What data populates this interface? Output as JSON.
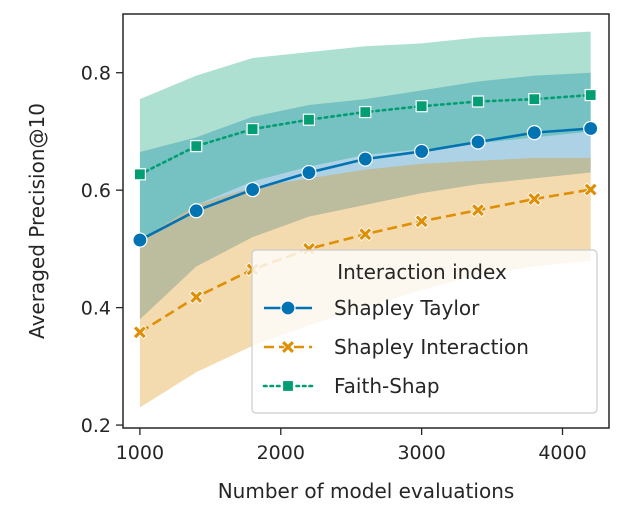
{
  "chart_data": {
    "type": "line",
    "title": "",
    "xlabel": "Number of model evaluations",
    "ylabel": "Averaged Precision@10",
    "xlim": [
      880,
      4330
    ],
    "ylim": [
      0.195,
      0.9
    ],
    "xticks": [
      1000,
      2000,
      3000,
      4000
    ],
    "xtick_labels": [
      "1000",
      "2000",
      "3000",
      "4000"
    ],
    "yticks": [
      0.2,
      0.4,
      0.6,
      0.8
    ],
    "ytick_labels": [
      "0.2",
      "0.4",
      "0.6",
      "0.8"
    ],
    "grid": false,
    "legend_title": "Interaction index",
    "legend_position": "lower-right",
    "x": [
      1000,
      1400,
      1800,
      2200,
      2600,
      3000,
      3400,
      3800,
      4200
    ],
    "series": [
      {
        "name": "Shapley Taylor",
        "color": "#0173b2",
        "linestyle": "solid",
        "marker": "circle",
        "values": [
          0.515,
          0.565,
          0.601,
          0.63,
          0.653,
          0.666,
          0.682,
          0.698,
          0.705
        ],
        "band_low": [
          0.38,
          0.47,
          0.52,
          0.555,
          0.575,
          0.595,
          0.61,
          0.62,
          0.63
        ],
        "band_high": [
          0.665,
          0.69,
          0.725,
          0.745,
          0.755,
          0.77,
          0.785,
          0.795,
          0.8
        ],
        "band_color": "#0173b2"
      },
      {
        "name": "Shapley Interaction",
        "color": "#de8f05",
        "linestyle": "dashed",
        "marker": "x",
        "values": [
          0.358,
          0.418,
          0.465,
          0.5,
          0.525,
          0.547,
          0.566,
          0.585,
          0.601
        ],
        "band_low": [
          0.23,
          0.29,
          0.335,
          0.37,
          0.4,
          0.43,
          0.455,
          0.47,
          0.48
        ],
        "band_high": [
          0.515,
          0.575,
          0.605,
          0.62,
          0.635,
          0.645,
          0.65,
          0.655,
          0.655
        ],
        "band_color": "#de8f05"
      },
      {
        "name": "Faith-Shap",
        "color": "#029e73",
        "linestyle": "dotted",
        "marker": "square",
        "values": [
          0.627,
          0.675,
          0.704,
          0.72,
          0.733,
          0.743,
          0.751,
          0.755,
          0.762
        ],
        "band_low": [
          0.515,
          0.575,
          0.615,
          0.64,
          0.66,
          0.67,
          0.68,
          0.69,
          0.7
        ],
        "band_high": [
          0.755,
          0.795,
          0.825,
          0.835,
          0.845,
          0.85,
          0.86,
          0.865,
          0.87
        ],
        "band_color": "#029e73"
      }
    ]
  }
}
